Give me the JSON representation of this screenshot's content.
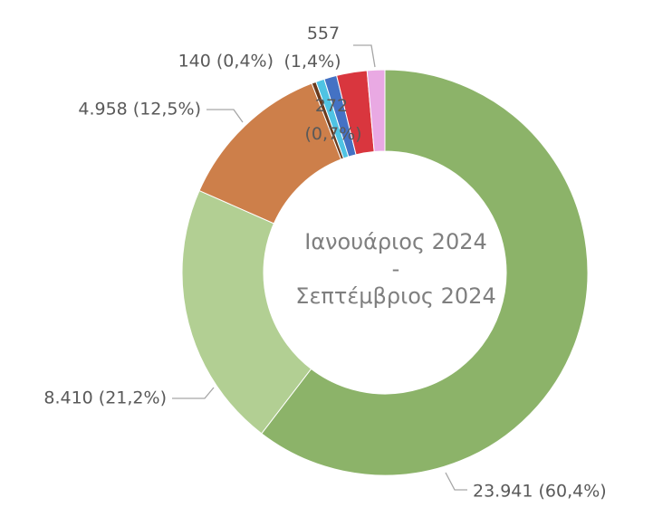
{
  "chart_data": {
    "type": "donut",
    "center_text": [
      "Ιανουάριος 2024",
      "-",
      "Σεπτέμβριος 2024"
    ],
    "values": [
      23941,
      8410,
      4958,
      140,
      272,
      400,
      960,
      557
    ],
    "value_labels": [
      "23.941 (60,4%)",
      "8.410 (21,2%)",
      "4.958 (12,5%)",
      "140 (0,4%)",
      "272 (0,7%)",
      null,
      null,
      "557 (1,4%)"
    ],
    "colors": [
      "#8cb369",
      "#b2cf93",
      "#cd7f4a",
      "#6b3a1c",
      "#4fc3e3",
      "#4472c4",
      "#d9363e",
      "#e9a9e3"
    ]
  }
}
